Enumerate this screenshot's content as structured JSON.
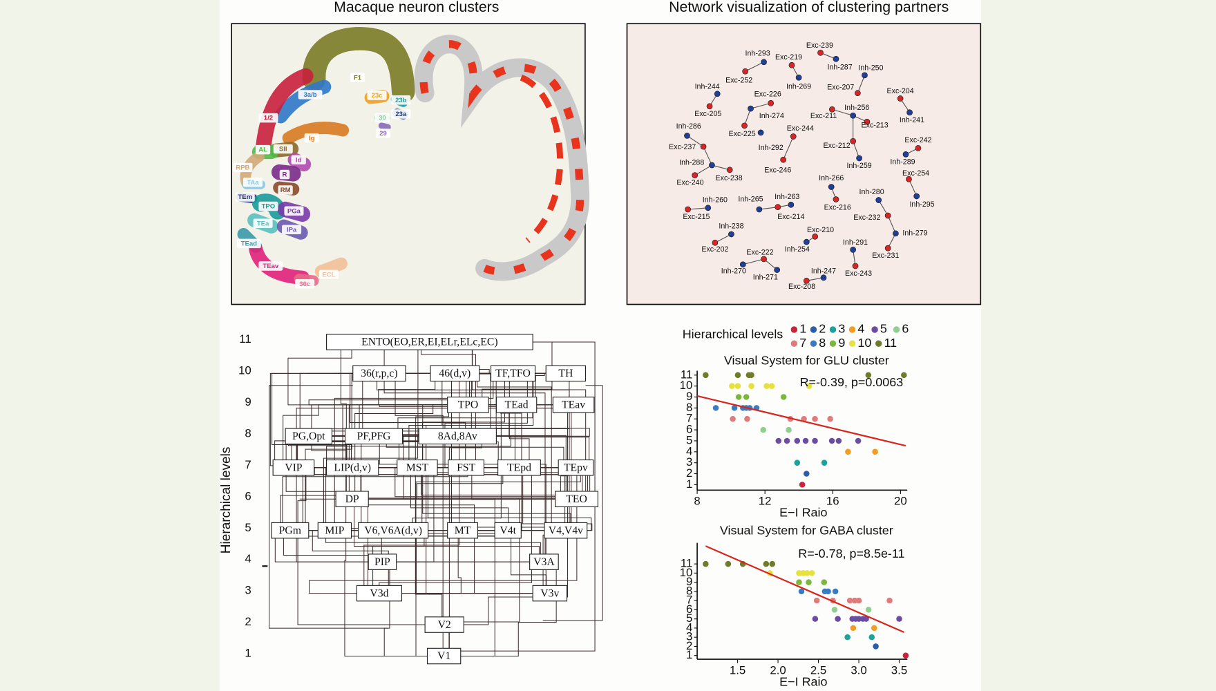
{
  "panel_a": {
    "title": "Macaque neuron clusters",
    "regions": [
      {
        "label": "F1",
        "color": "#7b7b26"
      },
      {
        "label": "3a/b",
        "color": "#2f78c8"
      },
      {
        "label": "1/2",
        "color": "#c8203c"
      },
      {
        "label": "23c",
        "color": "#f0a020"
      },
      {
        "label": "23b",
        "color": "#1aa0a0"
      },
      {
        "label": "23a",
        "color": "#1c3f8c"
      },
      {
        "label": "30",
        "color": "#8cc8a0"
      },
      {
        "label": "29",
        "color": "#8a6ab8"
      },
      {
        "label": "Ig",
        "color": "#d87a20"
      },
      {
        "label": "SII",
        "color": "#8a6a2a"
      },
      {
        "label": "AL",
        "color": "#4cbc40"
      },
      {
        "label": "Id",
        "color": "#b04ab0"
      },
      {
        "label": "RPB",
        "color": "#d0a878"
      },
      {
        "label": "R",
        "color": "#7a2a8a"
      },
      {
        "label": "RM",
        "color": "#8a4a2a"
      },
      {
        "label": "TAa",
        "color": "#8ac8e8"
      },
      {
        "label": "TEm",
        "color": "#1a2a80"
      },
      {
        "label": "TPO",
        "color": "#1a9a9a"
      },
      {
        "label": "PGa",
        "color": "#7a3aaa"
      },
      {
        "label": "TEa",
        "color": "#5ac0c0"
      },
      {
        "label": "IPa",
        "color": "#6a5ab0"
      },
      {
        "label": "TEad",
        "color": "#3a9aa8"
      },
      {
        "label": "TEav",
        "color": "#e0207a"
      },
      {
        "label": "36c",
        "color": "#e86a8a"
      },
      {
        "label": "ECL",
        "color": "#f0c098"
      }
    ]
  },
  "panel_b": {
    "title": "Network visualization of clustering partners",
    "nodes": [
      {
        "label": "Exc-239",
        "color": "#d62728"
      },
      {
        "label": "Inh-287",
        "color": "#1f3f99"
      },
      {
        "label": "Inh-293",
        "color": "#1f3f99"
      },
      {
        "label": "Exc-252",
        "color": "#d62728"
      },
      {
        "label": "Exc-219",
        "color": "#d62728"
      },
      {
        "label": "Inh-269",
        "color": "#1f3f99"
      },
      {
        "label": "Inh-250",
        "color": "#1f3f99"
      },
      {
        "label": "Exc-207",
        "color": "#d62728"
      },
      {
        "label": "Inh-244",
        "color": "#1f3f99"
      },
      {
        "label": "Exc-205",
        "color": "#d62728"
      },
      {
        "label": "Exc-226",
        "color": "#d62728"
      },
      {
        "label": "Inh-274",
        "color": "#1f3f99"
      },
      {
        "label": "Exc-225",
        "color": "#d62728"
      },
      {
        "label": "Exc-204",
        "color": "#d62728"
      },
      {
        "label": "Inh-241",
        "color": "#1f3f99"
      },
      {
        "label": "Exc-211",
        "color": "#d62728"
      },
      {
        "label": "Inh-256",
        "color": "#1f3f99"
      },
      {
        "label": "Exc-213",
        "color": "#d62728"
      },
      {
        "label": "Exc-212",
        "color": "#d62728"
      },
      {
        "label": "Inh-259",
        "color": "#1f3f99"
      },
      {
        "label": "Inh-286",
        "color": "#1f3f99"
      },
      {
        "label": "Exc-237",
        "color": "#d62728"
      },
      {
        "label": "Inh-288",
        "color": "#1f3f99"
      },
      {
        "label": "Exc-238",
        "color": "#d62728"
      },
      {
        "label": "Exc-240",
        "color": "#d62728"
      },
      {
        "label": "Exc-244",
        "color": "#d62728"
      },
      {
        "label": "Inh-292",
        "color": "#1f3f99"
      },
      {
        "label": "Exc-246",
        "color": "#d62728"
      },
      {
        "label": "Exc-242",
        "color": "#d62728"
      },
      {
        "label": "Inh-289",
        "color": "#1f3f99"
      },
      {
        "label": "Exc-254",
        "color": "#d62728"
      },
      {
        "label": "Inh-295",
        "color": "#1f3f99"
      },
      {
        "label": "Inh-266",
        "color": "#1f3f99"
      },
      {
        "label": "Exc-216",
        "color": "#d62728"
      },
      {
        "label": "Inh-280",
        "color": "#1f3f99"
      },
      {
        "label": "Exc-232",
        "color": "#d62728"
      },
      {
        "label": "Inh-279",
        "color": "#1f3f99"
      },
      {
        "label": "Exc-231",
        "color": "#d62728"
      },
      {
        "label": "Inh-260",
        "color": "#1f3f99"
      },
      {
        "label": "Exc-215",
        "color": "#d62728"
      },
      {
        "label": "Inh-265",
        "color": "#1f3f99"
      },
      {
        "label": "Inh-263",
        "color": "#1f3f99"
      },
      {
        "label": "Exc-214",
        "color": "#d62728"
      },
      {
        "label": "Inh-238",
        "color": "#1f3f99"
      },
      {
        "label": "Exc-202",
        "color": "#d62728"
      },
      {
        "label": "Exc-210",
        "color": "#d62728"
      },
      {
        "label": "Inh-254",
        "color": "#1f3f99"
      },
      {
        "label": "Inh-291",
        "color": "#1f3f99"
      },
      {
        "label": "Exc-243",
        "color": "#d62728"
      },
      {
        "label": "Exc-222",
        "color": "#d62728"
      },
      {
        "label": "Inh-270",
        "color": "#1f3f99"
      },
      {
        "label": "Inh-271",
        "color": "#1f3f99"
      },
      {
        "label": "Inh-247",
        "color": "#1f3f99"
      },
      {
        "label": "Exc-208",
        "color": "#d62728"
      }
    ],
    "edges": [
      [
        0,
        1
      ],
      [
        2,
        3
      ],
      [
        4,
        5
      ],
      [
        6,
        7
      ],
      [
        8,
        9
      ],
      [
        10,
        11
      ],
      [
        11,
        12
      ],
      [
        13,
        14
      ],
      [
        15,
        16
      ],
      [
        16,
        17
      ],
      [
        16,
        18
      ],
      [
        18,
        19
      ],
      [
        20,
        21
      ],
      [
        21,
        22
      ],
      [
        22,
        23
      ],
      [
        22,
        24
      ],
      [
        25,
        27
      ],
      [
        28,
        29
      ],
      [
        30,
        31
      ],
      [
        32,
        33
      ],
      [
        34,
        35
      ],
      [
        35,
        36
      ],
      [
        36,
        37
      ],
      [
        38,
        39
      ],
      [
        40,
        42
      ],
      [
        41,
        42
      ],
      [
        43,
        44
      ],
      [
        45,
        46
      ],
      [
        47,
        48
      ],
      [
        49,
        50
      ],
      [
        49,
        51
      ],
      [
        52,
        53
      ]
    ]
  },
  "panel_c": {
    "y_label": "Hierarchical levels",
    "ylim": [
      1,
      11
    ],
    "yticks": [
      1,
      2,
      3,
      4,
      5,
      6,
      7,
      8,
      9,
      10,
      11
    ],
    "boxes": [
      {
        "label": "ENTO(EO,ER,EI,ELr,ELc,EC)",
        "level": 11
      },
      {
        "label": "36(r,p,c)",
        "level": 10
      },
      {
        "label": "46(d,v)",
        "level": 10
      },
      {
        "label": "TF,TFO",
        "level": 10
      },
      {
        "label": "TH",
        "level": 10
      },
      {
        "label": "TPO",
        "level": 9
      },
      {
        "label": "TEad",
        "level": 9
      },
      {
        "label": "TEav",
        "level": 9
      },
      {
        "label": "PG,Opt",
        "level": 8
      },
      {
        "label": "PF,PFG",
        "level": 8
      },
      {
        "label": "8Ad,8Av",
        "level": 8
      },
      {
        "label": "VIP",
        "level": 7
      },
      {
        "label": "LIP(d,v)",
        "level": 7
      },
      {
        "label": "MST",
        "level": 7
      },
      {
        "label": "FST",
        "level": 7
      },
      {
        "label": "TEpd",
        "level": 7
      },
      {
        "label": "TEpv",
        "level": 7
      },
      {
        "label": "DP",
        "level": 6
      },
      {
        "label": "TEO",
        "level": 6
      },
      {
        "label": "PGm",
        "level": 5
      },
      {
        "label": "MIP",
        "level": 5
      },
      {
        "label": "V6,V6A(d,v)",
        "level": 5
      },
      {
        "label": "MT",
        "level": 5
      },
      {
        "label": "V4t",
        "level": 5
      },
      {
        "label": "V4,V4v",
        "level": 5
      },
      {
        "label": "PIP",
        "level": 4
      },
      {
        "label": "V3A",
        "level": 4
      },
      {
        "label": "V3d",
        "level": 3
      },
      {
        "label": "V3v",
        "level": 3
      },
      {
        "label": "V2",
        "level": 2
      },
      {
        "label": "V1",
        "level": 1
      }
    ]
  },
  "chart_data": [
    {
      "type": "scatter",
      "legend_title": "Hierarchical levels",
      "title": "Visual System for GLU cluster",
      "annotation": "R=-0.39, p=0.0063",
      "x_label": "E−I Raio",
      "xlim": [
        8,
        20.4
      ],
      "ylim": [
        0.5,
        11.4
      ],
      "xticks": [
        8,
        12,
        16,
        20
      ],
      "yticks": [
        1,
        2,
        3,
        4,
        5,
        6,
        7,
        8,
        9,
        10,
        11
      ],
      "trend": {
        "color": "#d7261e",
        "x": [
          8,
          20.3
        ],
        "values": [
          9.1,
          4.55
        ]
      },
      "series": [
        {
          "name": "1",
          "color": "#c8233a",
          "x": [
            14.2
          ],
          "values": [
            1
          ]
        },
        {
          "name": "2",
          "color": "#2a5ea8",
          "x": [
            14.45
          ],
          "values": [
            2
          ]
        },
        {
          "name": "3",
          "color": "#1aa39a",
          "x": [
            13.9,
            15.5
          ],
          "values": [
            3,
            3
          ]
        },
        {
          "name": "4",
          "color": "#f39c1f",
          "x": [
            16.9,
            18.5
          ],
          "values": [
            4,
            4
          ]
        },
        {
          "name": "5",
          "color": "#6a4da0",
          "x": [
            12.8,
            13.3,
            13.9,
            14.4,
            14.95,
            15.95,
            16.35,
            17.5
          ],
          "values": [
            5,
            5,
            5,
            5,
            5,
            5,
            5,
            5
          ]
        },
        {
          "name": "6",
          "color": "#8fcf8f",
          "x": [
            11.9,
            13.4
          ],
          "values": [
            6,
            6
          ]
        },
        {
          "name": "7",
          "color": "#e07b7b",
          "x": [
            10.1,
            10.95,
            13.5,
            14.3,
            14.95,
            15.85
          ],
          "values": [
            7,
            7,
            7,
            7,
            7,
            7
          ]
        },
        {
          "name": "8",
          "color": "#3a7cc4",
          "x": [
            9.1,
            10.2,
            10.7,
            10.9,
            11.1,
            11.5
          ],
          "values": [
            8,
            8,
            8,
            8,
            8,
            8
          ]
        },
        {
          "name": "9",
          "color": "#7ab73a",
          "x": [
            10.45,
            10.9,
            13.1
          ],
          "values": [
            9,
            9,
            9
          ]
        },
        {
          "name": "10",
          "color": "#e6e040",
          "x": [
            10.05,
            10.4,
            11.2,
            12.1,
            12.4,
            14.6
          ],
          "values": [
            10,
            10,
            10,
            10,
            10,
            10
          ]
        },
        {
          "name": "11",
          "color": "#6f7a2a",
          "x": [
            8.5,
            10.4,
            11.05,
            11.2,
            18.1,
            20.2
          ],
          "values": [
            11,
            11,
            11,
            11,
            11,
            11
          ]
        }
      ]
    },
    {
      "type": "scatter",
      "title": "Visual System for GABA cluster",
      "annotation": "R=-0.78, p=8.5e-11",
      "x_label": "E−I Raio",
      "xlim": [
        1.0,
        3.6
      ],
      "ylim": [
        0.6,
        13.3
      ],
      "xticks": [
        1.5,
        {
          "value": 2,
          "label": "2.0"
        },
        2.5,
        {
          "value": 3,
          "label": "3.0"
        },
        3.5
      ],
      "yticks": [
        1,
        2,
        3,
        4,
        5,
        6,
        7,
        8,
        9,
        10,
        11
      ],
      "trend": {
        "color": "#d7261e",
        "x": [
          1.105,
          3.56
        ],
        "values": [
          12.95,
          3.54
        ]
      },
      "series": [
        {
          "color": "#c8233a",
          "x": [
            3.58
          ],
          "values": [
            1
          ]
        },
        {
          "color": "#2a5ea8",
          "x": [
            3.21
          ],
          "values": [
            2
          ]
        },
        {
          "color": "#1aa39a",
          "x": [
            2.86,
            3.16
          ],
          "values": [
            3,
            3
          ]
        },
        {
          "color": "#f39c1f",
          "x": [
            2.93,
            3.19
          ],
          "values": [
            4,
            4
          ]
        },
        {
          "color": "#6a4da0",
          "x": [
            2.46,
            2.74,
            2.92,
            2.96,
            3.0,
            3.05,
            3.09,
            3.5
          ],
          "values": [
            5,
            5,
            5,
            5,
            5,
            5,
            5,
            5
          ]
        },
        {
          "color": "#8fcf8f",
          "x": [
            2.7,
            3.12
          ],
          "values": [
            6,
            6
          ]
        },
        {
          "color": "#e07b7b",
          "x": [
            2.48,
            2.68,
            2.89,
            2.95,
            3.0,
            3.38
          ],
          "values": [
            7,
            7,
            7,
            7,
            7,
            7
          ]
        },
        {
          "color": "#3a7cc4",
          "x": [
            2.29,
            2.58,
            2.62,
            2.71
          ],
          "values": [
            8,
            8,
            8,
            8
          ]
        },
        {
          "color": "#7ab73a",
          "x": [
            2.26,
            2.38,
            2.57
          ],
          "values": [
            9,
            9,
            9
          ]
        },
        {
          "color": "#e6e040",
          "x": [
            1.9,
            2.26,
            2.31,
            2.36,
            2.42
          ],
          "values": [
            10,
            10,
            10,
            10,
            10
          ]
        },
        {
          "color": "#6f7a2a",
          "x": [
            1.105,
            1.383,
            1.565,
            1.853,
            1.929
          ],
          "values": [
            11,
            11,
            11,
            11,
            11
          ]
        }
      ]
    }
  ]
}
